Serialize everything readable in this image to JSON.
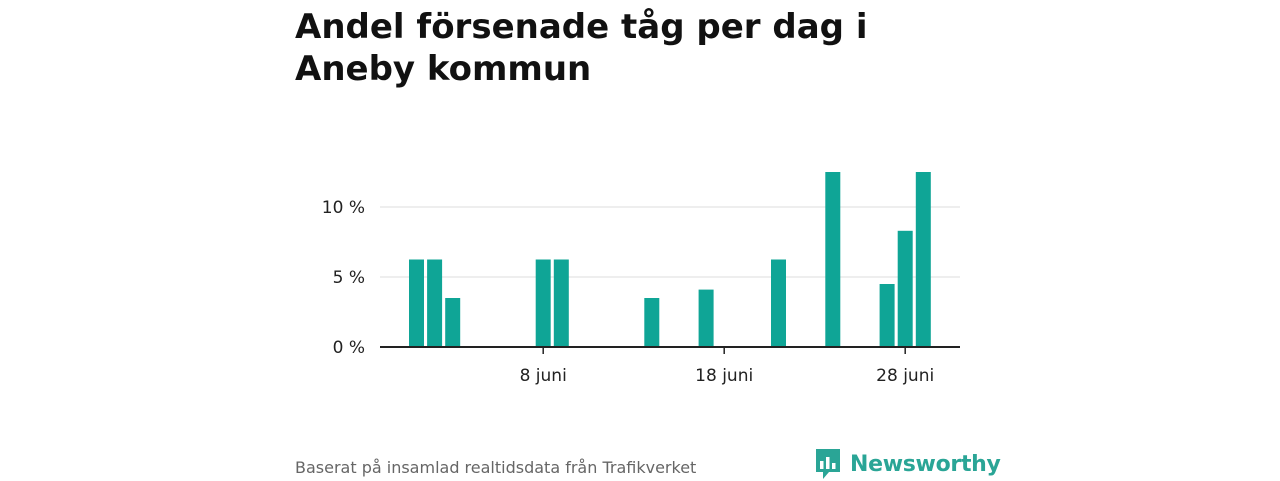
{
  "title": "Andel försenade tåg per dag i Aneby kommun",
  "source": "Baserat på insamlad realtidsdata från Trafikverket",
  "brand": "Newsworthy",
  "colors": {
    "bar": "#0fa596",
    "brand": "#2aa596",
    "grid": "#dddddd",
    "axis": "#222222"
  },
  "chart_data": {
    "type": "bar",
    "title": "Andel försenade tåg per dag i Aneby kommun",
    "xlabel": "",
    "ylabel": "",
    "x_start": "1 juni",
    "ylim": [
      0,
      15
    ],
    "yticks": [
      {
        "value": 0,
        "label": "0 %"
      },
      {
        "value": 5,
        "label": "5 %"
      },
      {
        "value": 10,
        "label": "10 %"
      }
    ],
    "xticks": [
      {
        "day": 8,
        "label": "8 juni"
      },
      {
        "day": 18,
        "label": "18 juni"
      },
      {
        "day": 28,
        "label": "28 juni"
      }
    ],
    "days": [
      1,
      2,
      3,
      8,
      9,
      14,
      17,
      21,
      24,
      27,
      28,
      29
    ],
    "values": [
      6.25,
      6.25,
      3.5,
      6.25,
      6.25,
      3.5,
      4.1,
      6.25,
      12.5,
      4.5,
      8.3,
      12.5
    ],
    "grid": true,
    "legend": "none"
  }
}
